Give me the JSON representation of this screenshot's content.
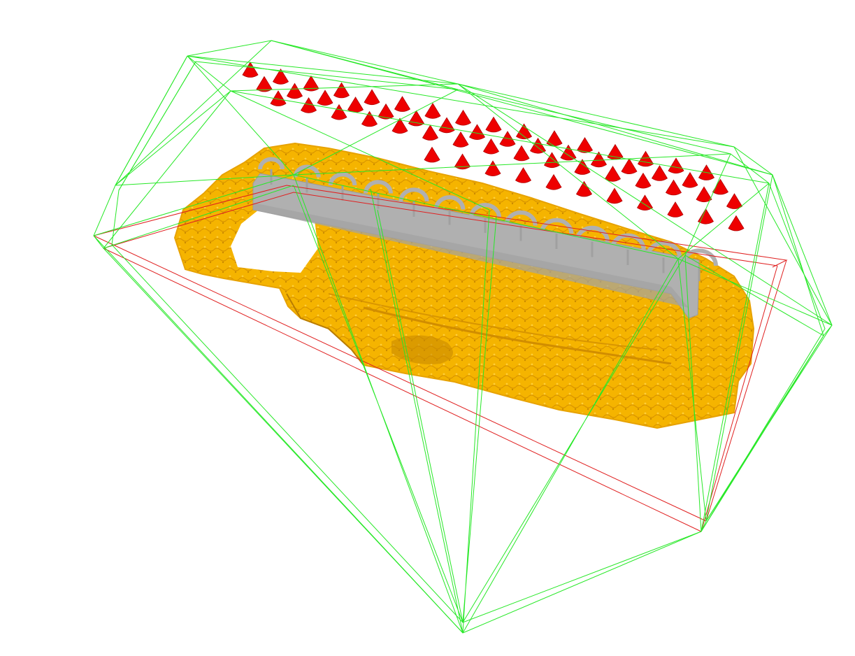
{
  "colors": {
    "background": "#ffffff",
    "hull": "#27e827",
    "bounding_box": "#e02020",
    "terrain": "#f5b400",
    "terrain_shadow": "#c98a00",
    "structure": "#b0b0b0",
    "camera": "#ee0000"
  },
  "scene": {
    "camera_rows": 4,
    "camera_cols": 16,
    "arch_count": 13
  }
}
